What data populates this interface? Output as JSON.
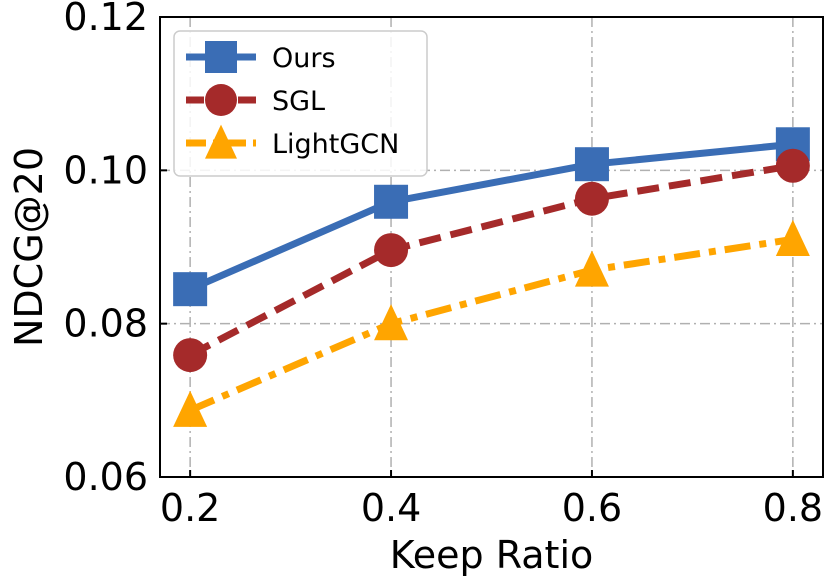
{
  "chart_data": {
    "type": "line",
    "title": "",
    "xlabel": "Keep Ratio",
    "ylabel": "NDCG@20",
    "x": [
      0.2,
      0.4,
      0.6,
      0.8
    ],
    "x_tick_labels": [
      "0.2",
      "0.4",
      "0.6",
      "0.8"
    ],
    "y_ticks": [
      0.06,
      0.08,
      0.1,
      0.12
    ],
    "y_tick_labels": [
      "0.06",
      "0.08",
      "0.10",
      "0.12"
    ],
    "xlim": [
      0.17,
      0.83
    ],
    "ylim": [
      0.06,
      0.12
    ],
    "grid": true,
    "legend_position": "top-left",
    "series": [
      {
        "name": "Ours",
        "values": [
          0.0845,
          0.0959,
          0.1008,
          0.1034
        ],
        "color": "#3a6db5",
        "marker": "square",
        "linestyle": "solid"
      },
      {
        "name": "SGL",
        "values": [
          0.0759,
          0.0896,
          0.0963,
          0.1006
        ],
        "color": "#a52a2a",
        "marker": "circle",
        "linestyle": "dashed"
      },
      {
        "name": "LightGCN",
        "values": [
          0.0687,
          0.08,
          0.087,
          0.091
        ],
        "color": "#ffa500",
        "marker": "triangle",
        "linestyle": "dashdot"
      }
    ]
  }
}
